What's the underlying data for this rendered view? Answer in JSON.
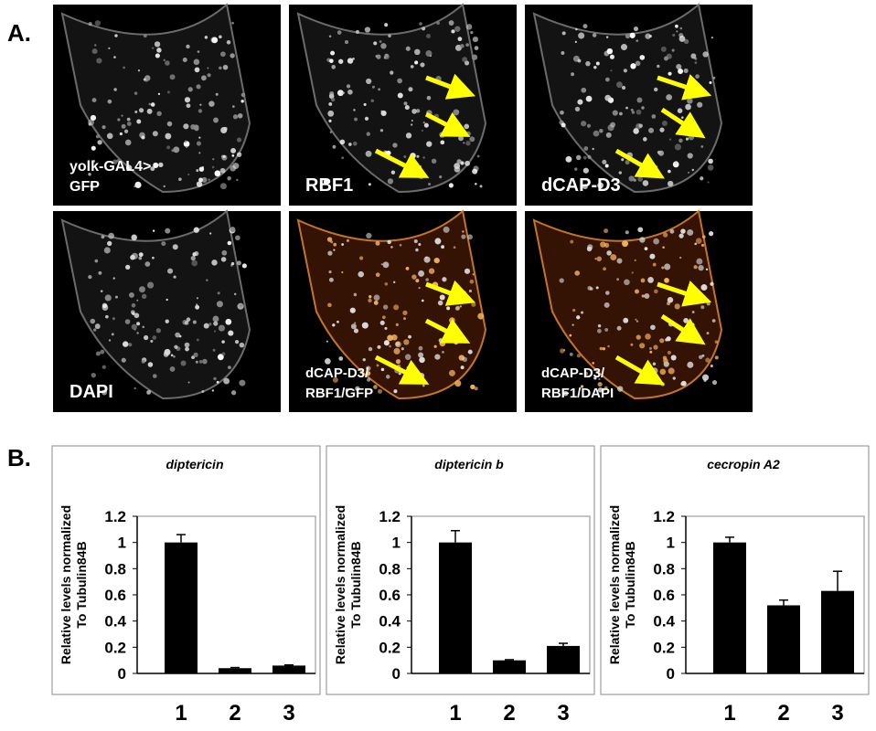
{
  "figure": {
    "panel_a_label": "A.",
    "panel_b_label": "B.",
    "images": [
      {
        "label_lines": [
          "yolk-GAL4>",
          "GFP"
        ]
      },
      {
        "label_lines": [
          "RBF1"
        ]
      },
      {
        "label_lines": [
          "dCAP-D3"
        ]
      },
      {
        "label_lines": [
          "DAPI"
        ]
      },
      {
        "label_lines": [
          "dCAP-D3/",
          "RBF1/GFP"
        ]
      },
      {
        "label_lines": [
          "dCAP-D3/",
          "RBF1/DAPI"
        ]
      }
    ]
  },
  "chart_data": [
    {
      "type": "bar",
      "title": "diptericin",
      "ylabel_lines": [
        "Relative levels normalized",
        "To Tubulin84B"
      ],
      "categories": [
        "1",
        "2",
        "3"
      ],
      "values": [
        1.0,
        0.04,
        0.06
      ],
      "errors": [
        0.06,
        0.005,
        0.005
      ],
      "color": "#000000",
      "ylim": [
        0,
        1.2
      ],
      "yticks": [
        0,
        0.2,
        0.4,
        0.6,
        0.8,
        1,
        1.2
      ]
    },
    {
      "type": "bar",
      "title": "diptericin b",
      "ylabel_lines": [
        "Relative levels normalized",
        "To Tubulin84B"
      ],
      "categories": [
        "1",
        "2",
        "3"
      ],
      "values": [
        1.0,
        0.1,
        0.21
      ],
      "errors": [
        0.09,
        0.005,
        0.02
      ],
      "color": "#000000",
      "ylim": [
        0,
        1.2
      ],
      "yticks": [
        0,
        0.2,
        0.4,
        0.6,
        0.8,
        1,
        1.2
      ]
    },
    {
      "type": "bar",
      "title": "cecropin A2",
      "ylabel_lines": [
        "Relative levels normalized",
        "To Tubulin84B"
      ],
      "categories": [
        "1",
        "2",
        "3"
      ],
      "values": [
        1.0,
        0.52,
        0.63
      ],
      "errors": [
        0.04,
        0.04,
        0.15
      ],
      "color": "#000000",
      "ylim": [
        0,
        1.2
      ],
      "yticks": [
        0,
        0.2,
        0.4,
        0.6,
        0.8,
        1,
        1.2
      ]
    }
  ]
}
